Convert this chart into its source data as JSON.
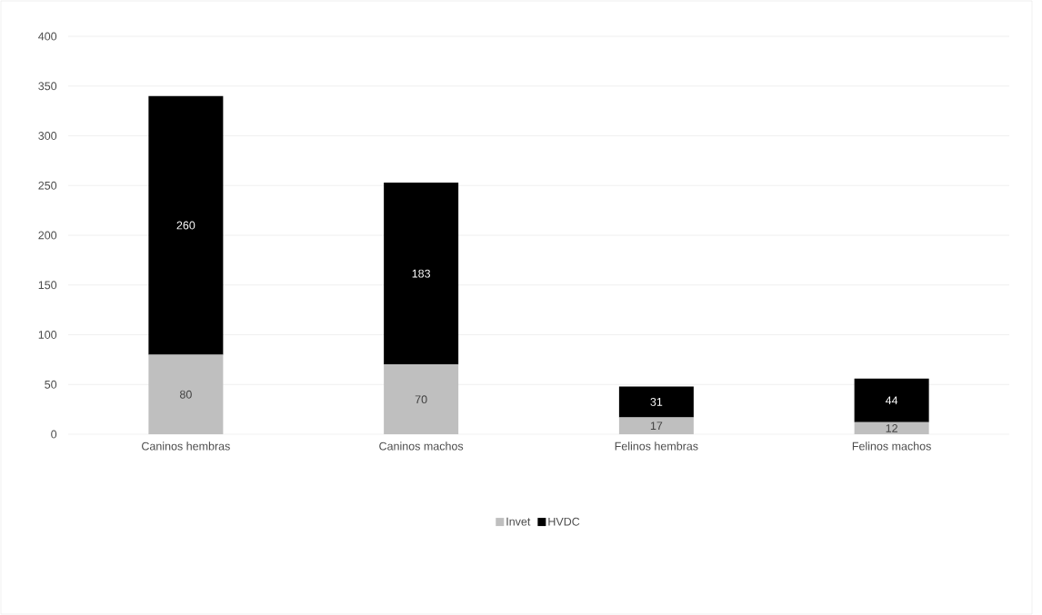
{
  "chart_data": {
    "type": "bar",
    "stacked": true,
    "categories": [
      "Caninos hembras",
      "Caninos machos",
      "Felinos hembras",
      "Felinos machos"
    ],
    "series": [
      {
        "name": "Invet",
        "color": "#bfbfbf",
        "values": [
          80,
          70,
          17,
          12
        ]
      },
      {
        "name": "HVDC",
        "color": "#000000",
        "values": [
          260,
          183,
          31,
          44
        ]
      }
    ],
    "ylim": [
      0,
      400
    ],
    "yticks": [
      0,
      50,
      100,
      150,
      200,
      250,
      300,
      350,
      400
    ],
    "grid": "y",
    "legend": "bottom",
    "data_labels": true
  }
}
